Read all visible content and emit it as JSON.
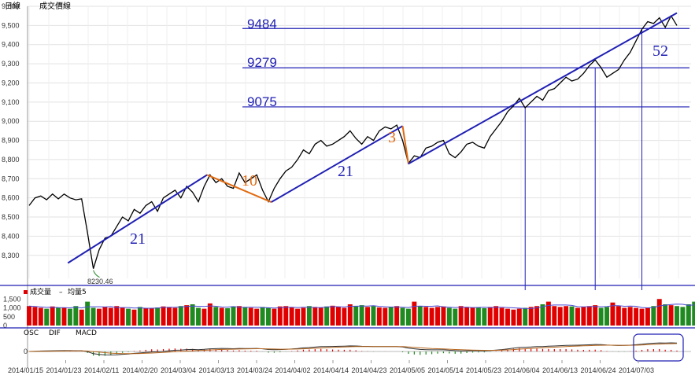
{
  "header": {
    "period_label": "日線",
    "series_label": "成交價線"
  },
  "price_axis": {
    "ticks": [
      "9,600",
      "9,500",
      "9,400",
      "9,300",
      "9,200",
      "9,100",
      "9,000",
      "8,900",
      "8,800",
      "8,700",
      "8,600",
      "8,500",
      "8,400",
      "8,300"
    ]
  },
  "low_marker": "8230.46",
  "levels": [
    "9484",
    "9279",
    "9075"
  ],
  "count_labels": [
    {
      "text": "21",
      "color": "#1f1fb4"
    },
    {
      "text": "10",
      "color": "#e06a10"
    },
    {
      "text": "21",
      "color": "#1f1fb4"
    },
    {
      "text": "3",
      "color": "#e06a10"
    },
    {
      "text": "52",
      "color": "#1f1fb4"
    }
  ],
  "volume_panel": {
    "legend_volume": "成交量",
    "legend_ma": "均量5",
    "ticks": [
      "1,500",
      "1,000",
      "500",
      "0"
    ]
  },
  "macd_panel": {
    "legend_osc": "OSC",
    "legend_dif": "DIF",
    "legend_macd": "MACD",
    "tick_zero": "0"
  },
  "x_axis": {
    "dates": [
      "2014/01/15",
      "2014/01/23",
      "2014/02/11",
      "2014/02/20",
      "2014/03/04",
      "2014/03/13",
      "2014/03/24",
      "2014/04/02",
      "2014/04/14",
      "2014/04/23",
      "2014/05/05",
      "2014/05/14",
      "2014/05/23",
      "2014/06/04",
      "2014/06/13",
      "2014/06/24",
      "2014/07/03"
    ]
  },
  "chart_data": {
    "type": "line",
    "title": "",
    "price_ylim": [
      8180,
      9600
    ],
    "price_series": [
      8560,
      8600,
      8610,
      8590,
      8620,
      8595,
      8620,
      8600,
      8590,
      8595,
      8420,
      8230.46,
      8330,
      8390,
      8400,
      8450,
      8500,
      8480,
      8540,
      8520,
      8560,
      8580,
      8530,
      8600,
      8620,
      8640,
      8600,
      8660,
      8630,
      8580,
      8660,
      8720,
      8680,
      8700,
      8660,
      8650,
      8730,
      8680,
      8700,
      8720,
      8640,
      8580,
      8650,
      8700,
      8740,
      8760,
      8800,
      8850,
      8830,
      8880,
      8900,
      8870,
      8880,
      8900,
      8920,
      8950,
      8910,
      8880,
      8920,
      8900,
      8950,
      8970,
      8960,
      8980,
      8900,
      8780,
      8820,
      8810,
      8860,
      8870,
      8890,
      8900,
      8830,
      8810,
      8840,
      8880,
      8890,
      8870,
      8860,
      8920,
      8960,
      9000,
      9050,
      9080,
      9120,
      9070,
      9100,
      9130,
      9110,
      9160,
      9170,
      9200,
      9230,
      9210,
      9220,
      9250,
      9290,
      9320,
      9280,
      9230,
      9250,
      9270,
      9320,
      9360,
      9420,
      9480,
      9520,
      9510,
      9540,
      9490,
      9550,
      9500
    ],
    "trend_lines": [
      {
        "from": [
          "2014/01/23",
          8260
        ],
        "to": [
          "2014/03/06",
          8720
        ],
        "color": "#1f1fb4"
      },
      {
        "from": [
          "2014/03/06",
          8720
        ],
        "to": [
          "2014/03/21",
          8578
        ],
        "color": "#e06a10"
      },
      {
        "from": [
          "2014/03/21",
          8578
        ],
        "to": [
          "2014/04/24",
          8975
        ],
        "color": "#1f1fb4"
      },
      {
        "from": [
          "2014/04/24",
          8975
        ],
        "to": [
          "2014/04/25",
          8778
        ],
        "color": "#e06a10"
      },
      {
        "from": [
          "2014/04/25",
          8778
        ],
        "to": [
          "2014/07/10",
          9565
        ],
        "color": "#1f1fb4"
      }
    ],
    "level_lines": [
      9484,
      9279,
      9075
    ],
    "volume_ylim": [
      0,
      1600
    ],
    "volume": [
      1100,
      1050,
      1000,
      950,
      1080,
      1020,
      1000,
      950,
      1100,
      900,
      1350,
      1000,
      950,
      1050,
      1000,
      1100,
      1000,
      950,
      900,
      1050,
      980,
      1000,
      1020,
      1080,
      1050,
      1000,
      1100,
      1150,
      1200,
      1000,
      950,
      1250,
      1050,
      1000,
      980,
      1080,
      1100,
      1020,
      1000,
      950,
      1050,
      1000,
      950,
      1080,
      1100,
      1020,
      950,
      1000,
      1100,
      1050,
      1000,
      1080,
      1120,
      1050,
      1000,
      1200,
      1100,
      1150,
      1050,
      1100,
      1020,
      1000,
      1050,
      1100,
      1000,
      950,
      1350,
      1100,
      1050,
      1000,
      1050,
      1080,
      1000,
      950,
      1100,
      1050,
      1000,
      1020,
      980,
      1050,
      1100,
      1000,
      950,
      900,
      950,
      1000,
      1050,
      1100,
      1200,
      1350,
      1100,
      1050,
      1100,
      1080,
      1000,
      1050,
      1100,
      1150,
      1000,
      1050,
      1300,
      1100,
      1000,
      1050,
      1000,
      950,
      1000,
      1100,
      1500,
      1200,
      1150,
      1100,
      1050,
      1200,
      1350
    ]
  }
}
